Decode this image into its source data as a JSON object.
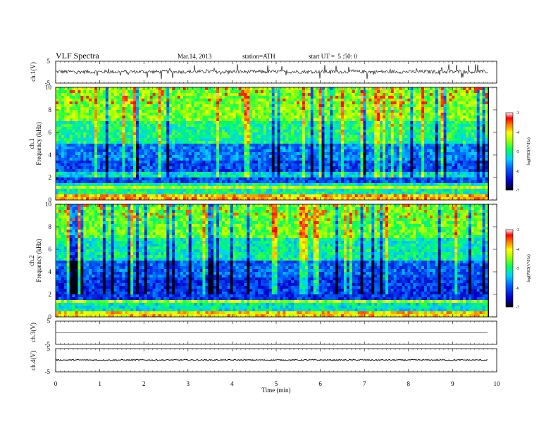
{
  "header": {
    "title": "VLF Spectra",
    "date": "Mar.14, 2013",
    "station": "station=ATH",
    "start": "start UT =  5 :50: 0"
  },
  "chart_data": {
    "type": "multi-panel time-series + spectrogram",
    "x_axis": {
      "label": "Time (min)",
      "range": [
        0,
        10
      ],
      "ticks": [
        "0",
        "1",
        "2",
        "3",
        "4",
        "5",
        "6",
        "7",
        "8",
        "9",
        "10"
      ],
      "data_end_min": 9.8
    },
    "panels": [
      {
        "id": "ch1-waveform",
        "type": "line",
        "ylabel": "ch.1(V)",
        "ylim": [
          -5,
          5
        ],
        "ytick_labels": [
          "5",
          "-5"
        ],
        "trace_center_v": 0.2,
        "trace_noise_v": 0.8,
        "spike_max_v": 3.5
      },
      {
        "id": "ch1-spectrogram",
        "type": "heatmap",
        "ylabel": "ch.1",
        "ylabel2": "Frequency (kHz)",
        "ylim": [
          0,
          10
        ],
        "ytick_labels": [
          "0",
          "2",
          "4",
          "6",
          "8",
          "10"
        ],
        "colorbar": {
          "label": "log(PSD(V²/Hz)",
          "range": [
            -7,
            -3
          ],
          "tick_labels": [
            "-3",
            "-4",
            "-5",
            "-6",
            "-7"
          ]
        }
      },
      {
        "id": "ch2-spectrogram",
        "type": "heatmap",
        "ylabel": "ch.2",
        "ylabel2": "Frequency (kHz)",
        "ylim": [
          0,
          10
        ],
        "ytick_labels": [
          "0",
          "2",
          "4",
          "6",
          "8",
          "10"
        ],
        "colorbar": {
          "label": "log(PSD(V²/Hz)",
          "range": [
            -7,
            -3
          ],
          "tick_labels": [
            "-3",
            "-4",
            "-5",
            "-6",
            "-7"
          ]
        }
      },
      {
        "id": "ch3-waveform",
        "type": "line",
        "ylabel": "ch.3(V)",
        "ylim": [
          -5,
          5
        ],
        "ytick_labels": [
          "5",
          "-5"
        ],
        "trace_center_v": 0.0,
        "trace_noise_v": 0.05
      },
      {
        "id": "ch4-waveform",
        "type": "line",
        "ylabel": "ch.4(V)",
        "ylim": [
          -5,
          5
        ],
        "ytick_labels": [
          "5",
          "-5"
        ],
        "trace_center_v": 0.1,
        "trace_noise_v": 0.25
      }
    ]
  }
}
